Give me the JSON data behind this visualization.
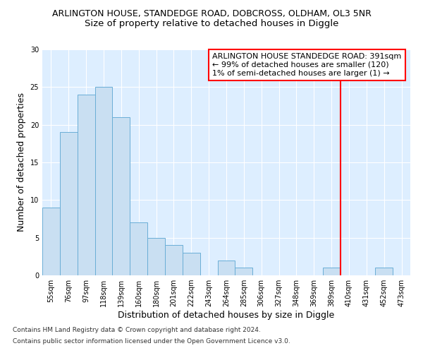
{
  "title": "ARLINGTON HOUSE, STANDEDGE ROAD, DOBCROSS, OLDHAM, OL3 5NR",
  "subtitle": "Size of property relative to detached houses in Diggle",
  "xlabel": "Distribution of detached houses by size in Diggle",
  "ylabel": "Number of detached properties",
  "categories": [
    "55sqm",
    "76sqm",
    "97sqm",
    "118sqm",
    "139sqm",
    "160sqm",
    "180sqm",
    "201sqm",
    "222sqm",
    "243sqm",
    "264sqm",
    "285sqm",
    "306sqm",
    "327sqm",
    "348sqm",
    "369sqm",
    "389sqm",
    "410sqm",
    "431sqm",
    "452sqm",
    "473sqm"
  ],
  "values": [
    9,
    19,
    24,
    25,
    21,
    7,
    5,
    4,
    3,
    0,
    2,
    1,
    0,
    0,
    0,
    0,
    1,
    0,
    0,
    1,
    0
  ],
  "bar_color": "#c9dff2",
  "bar_edge_color": "#6aaed6",
  "annotation_line1": "ARLINGTON HOUSE STANDEDGE ROAD: 391sqm",
  "annotation_line2": "← 99% of detached houses are smaller (120)",
  "annotation_line3": "1% of semi-detached houses are larger (1) →",
  "footnote1": "Contains HM Land Registry data © Crown copyright and database right 2024.",
  "footnote2": "Contains public sector information licensed under the Open Government Licence v3.0.",
  "ylim": [
    0,
    30
  ],
  "yticks": [
    0,
    5,
    10,
    15,
    20,
    25,
    30
  ],
  "red_line_index": 16,
  "background_color": "#ddeeff",
  "title_fontsize": 9,
  "subtitle_fontsize": 9.5,
  "axis_label_fontsize": 9,
  "tick_fontsize": 7,
  "annotation_fontsize": 8,
  "footnote_fontsize": 6.5
}
